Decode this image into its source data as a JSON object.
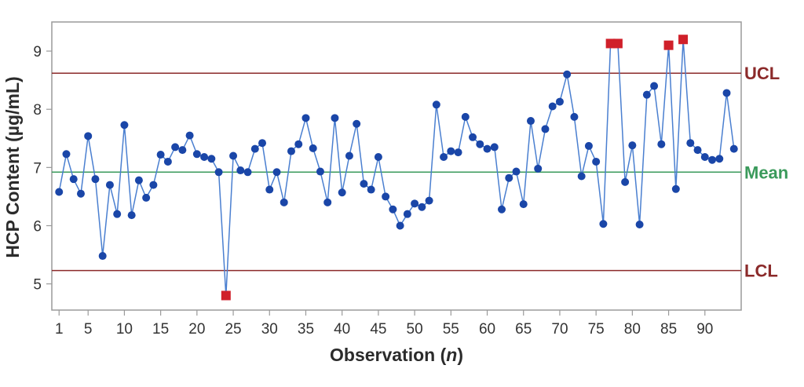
{
  "chart_data": {
    "type": "line",
    "title": "",
    "xlabel_main": "Observation (",
    "xlabel_italic": "n",
    "xlabel_end": ")",
    "ylabel": "HCP Content (µg/mL)",
    "xlim": [
      0,
      95
    ],
    "ylim": [
      4.55,
      9.5
    ],
    "xticks": [
      1,
      5,
      10,
      15,
      20,
      25,
      30,
      35,
      40,
      45,
      50,
      55,
      60,
      65,
      70,
      75,
      80,
      85,
      90
    ],
    "yticks": [
      5,
      6,
      7,
      8,
      9
    ],
    "x": [
      1,
      2,
      3,
      4,
      5,
      6,
      7,
      8,
      9,
      10,
      11,
      12,
      13,
      14,
      15,
      16,
      17,
      18,
      19,
      20,
      21,
      22,
      23,
      24,
      25,
      26,
      27,
      28,
      29,
      30,
      31,
      32,
      33,
      34,
      35,
      36,
      37,
      38,
      39,
      40,
      41,
      42,
      43,
      44,
      45,
      46,
      47,
      48,
      49,
      50,
      51,
      52,
      53,
      54,
      55,
      56,
      57,
      58,
      59,
      60,
      61,
      62,
      63,
      64,
      65,
      66,
      67,
      68,
      69,
      70,
      71,
      72,
      73,
      74,
      75,
      76,
      77,
      78,
      79,
      80,
      81,
      82,
      83,
      84,
      85,
      86,
      87,
      88,
      89,
      90,
      91,
      92,
      93,
      94
    ],
    "values": [
      6.58,
      7.23,
      6.8,
      6.55,
      7.54,
      6.8,
      5.48,
      6.7,
      6.2,
      7.73,
      6.18,
      6.78,
      6.48,
      6.7,
      7.22,
      7.1,
      7.35,
      7.3,
      7.55,
      7.23,
      7.18,
      7.15,
      6.92,
      4.8,
      7.2,
      6.95,
      6.92,
      7.32,
      7.42,
      6.62,
      6.92,
      6.4,
      7.28,
      7.4,
      7.85,
      7.33,
      6.93,
      6.4,
      7.85,
      6.57,
      7.2,
      7.75,
      6.72,
      6.62,
      7.18,
      6.5,
      6.28,
      6.0,
      6.2,
      6.38,
      6.32,
      6.43,
      8.08,
      7.18,
      7.28,
      7.26,
      7.87,
      7.52,
      7.4,
      7.32,
      7.35,
      6.28,
      6.82,
      6.93,
      6.37,
      7.8,
      6.98,
      7.66,
      8.05,
      8.13,
      8.6,
      7.87,
      6.85,
      7.37,
      7.1,
      6.03,
      9.13,
      9.13,
      6.75,
      7.38,
      6.02,
      8.25,
      8.4,
      7.4,
      9.1,
      6.63,
      9.2,
      7.42,
      7.3,
      7.18,
      7.13,
      7.15,
      8.28,
      7.32
    ],
    "out_of_control": [
      24,
      77,
      78,
      85,
      87
    ],
    "reference_lines": [
      {
        "name": "UCL",
        "value": 8.62,
        "color": "#8b2a2a"
      },
      {
        "name": "Mean",
        "value": 6.92,
        "color": "#3a9a5b"
      },
      {
        "name": "LCL",
        "value": 5.23,
        "color": "#8b2a2a"
      }
    ],
    "series_color": "#1a46a8",
    "line_color": "#4a7fd0",
    "flag_color": "#d0202a"
  }
}
